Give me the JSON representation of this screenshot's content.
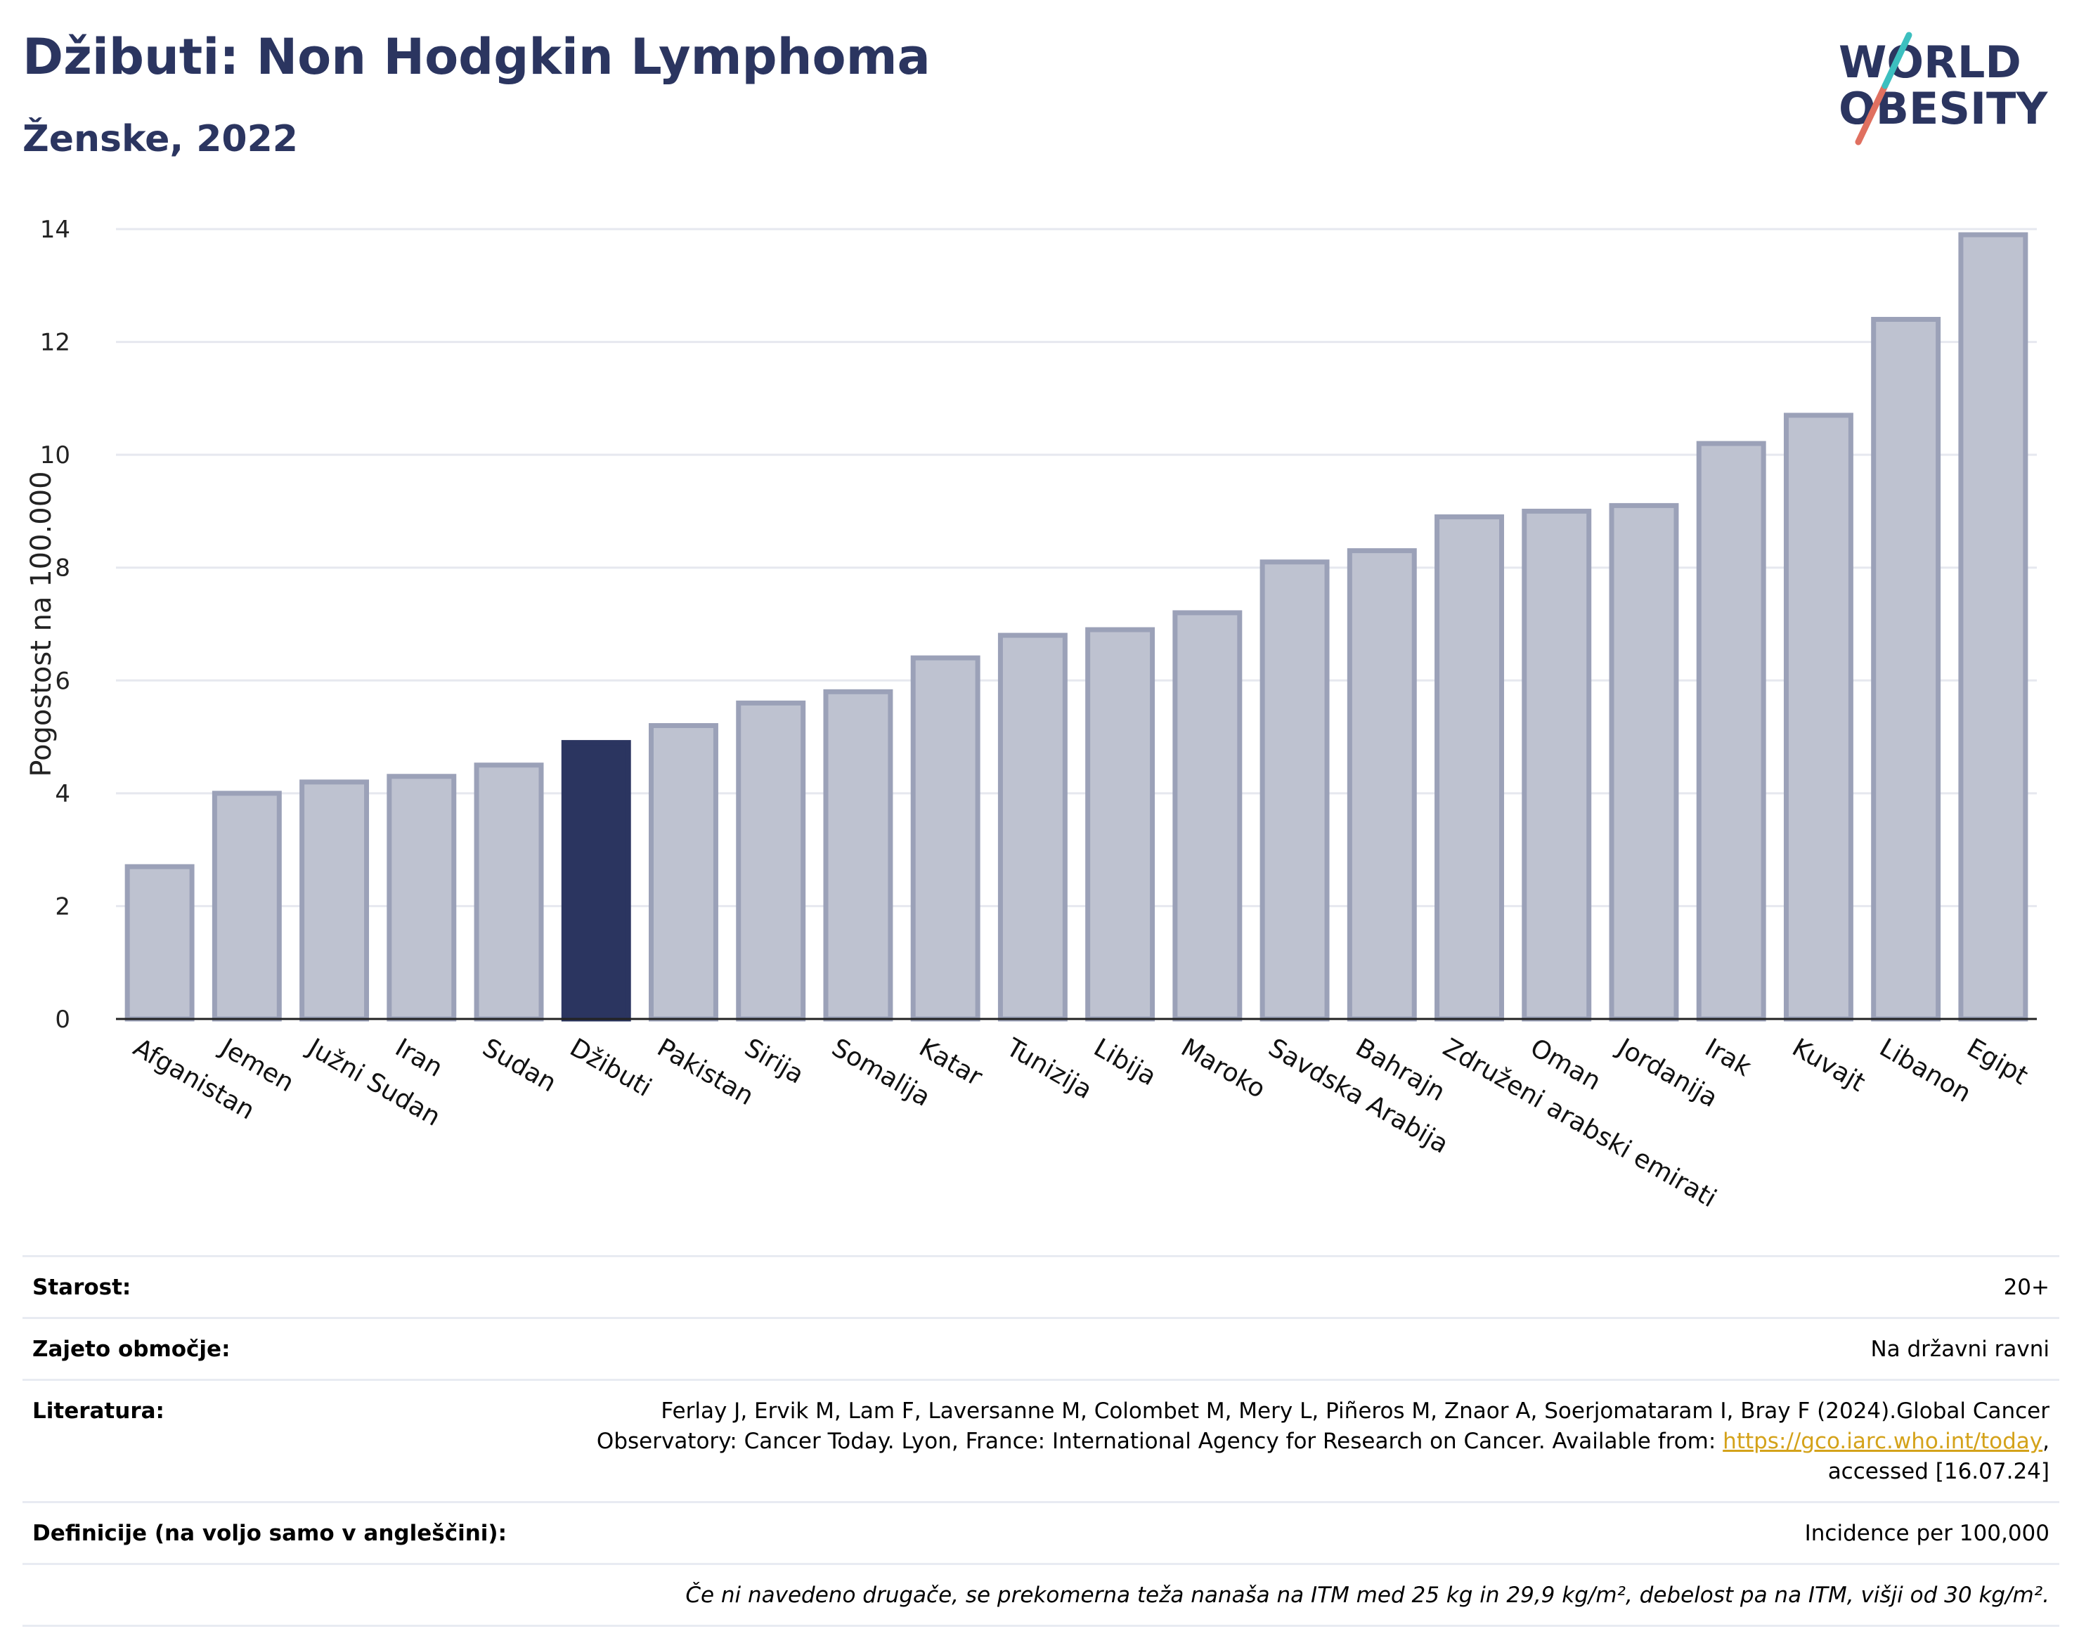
{
  "title": "Džibuti: Non Hodgkin Lymphoma",
  "subtitle": "Ženske, 2022",
  "logo": {
    "line1": "WORLD",
    "line2": "OBESITY",
    "colors": [
      "#2b3560",
      "#e07060",
      "#3cbfbf"
    ]
  },
  "colors": {
    "highlight": "#2b3560",
    "bar": "#bec2d0",
    "bar_stroke": "#9ba1b8",
    "grid": "#e6e8ef"
  },
  "chart_data": {
    "type": "bar",
    "ylabel": "Pogostost na 100.000",
    "ylim": [
      0,
      14
    ],
    "yticks": [
      0,
      2,
      4,
      6,
      8,
      10,
      12,
      14
    ],
    "highlight": "Džibuti",
    "categories": [
      "Afganistan",
      "Jemen",
      "Južni Sudan",
      "Iran",
      "Sudan",
      "Džibuti",
      "Pakistan",
      "Sirija",
      "Somalija",
      "Katar",
      "Tunizija",
      "Libija",
      "Maroko",
      "Savdska Arabija",
      "Bahrajn",
      "Združeni arabski emirati",
      "Oman",
      "Jordanija",
      "Irak",
      "Kuvajt",
      "Libanon",
      "Egipt"
    ],
    "values": [
      2.7,
      4.0,
      4.2,
      4.3,
      4.5,
      4.9,
      5.2,
      5.6,
      5.8,
      6.4,
      6.8,
      6.9,
      7.2,
      8.1,
      8.3,
      8.9,
      9.0,
      9.1,
      10.2,
      10.7,
      12.4,
      13.9
    ]
  },
  "meta": {
    "age_label": "Starost:",
    "age_value": "20+",
    "coverage_label": "Zajeto območje:",
    "coverage_value": "Na državni ravni",
    "lit_label": "Literatura:",
    "lit_text1": "Ferlay J, Ervik M, Lam F, Laversanne M, Colombet M, Mery L, Piñeros M, Znaor A, Soerjomataram I, Bray F (2024).Global Cancer",
    "lit_text2": "Observatory: Cancer Today. Lyon, France: International Agency for Research on Cancer. Available from: ",
    "lit_link": "https://gco.iarc.who.int/today",
    "lit_text3": ",",
    "lit_text4": "accessed [16.07.24]",
    "def_label": "Definicije (na voljo samo v angleščini):",
    "def_value": "Incidence per 100,000",
    "note": "Če ni navedeno drugače, se prekomerna teža nanaša na ITM med 25 kg in 29,9 kg/m², debelost pa na ITM, višji od 30 kg/m²."
  }
}
